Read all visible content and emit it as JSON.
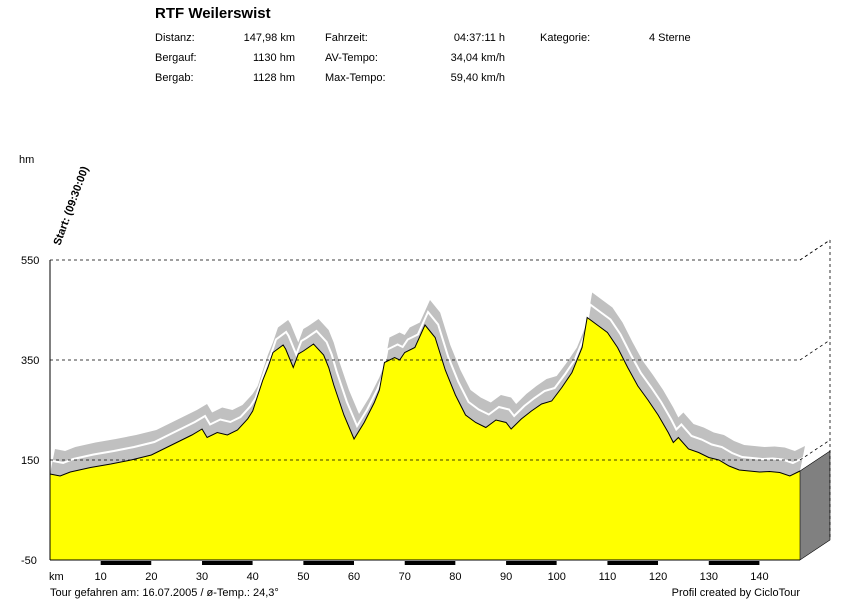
{
  "header": {
    "title": "RTF Weilerswist",
    "stats": [
      {
        "label": "Distanz:",
        "value": "147,98 km"
      },
      {
        "label": "Bergauf:",
        "value": "1130 hm"
      },
      {
        "label": "Bergab:",
        "value": "1128 hm"
      },
      {
        "label": "Fahrzeit:",
        "value": "04:37:11 h"
      },
      {
        "label": "AV-Tempo:",
        "value": "34,04 km/h"
      },
      {
        "label": "Max-Tempo:",
        "value": "59,40 km/h"
      },
      {
        "label": "Kategorie:",
        "value": "4 Sterne"
      }
    ]
  },
  "footer": {
    "left": "Tour gefahren am: 16.07.2005  /  ø-Temp.: 24,3°",
    "right": "Profil created by CicloTour"
  },
  "chart_data": {
    "type": "area",
    "ylabel": "hm",
    "xlabel": "km",
    "xlim": [
      0,
      148
    ],
    "ylim": [
      -50,
      550
    ],
    "yticks": [
      -50,
      150,
      350,
      550
    ],
    "xticks": [
      10,
      20,
      30,
      40,
      50,
      60,
      70,
      80,
      90,
      100,
      110,
      120,
      130,
      140
    ],
    "grid": "horizontal dashed at 150, 350, 550",
    "start_annotation": "Start: (09:30:00)",
    "series": [
      {
        "fill": "#ffff00",
        "x": [
          0,
          2,
          4,
          8,
          12,
          16,
          20,
          24,
          28,
          30,
          31,
          33,
          35,
          37,
          39,
          40,
          42,
          43,
          44,
          46,
          46.5,
          48,
          49,
          50,
          52,
          54,
          55,
          56,
          58,
          60,
          62,
          64,
          65,
          66,
          68,
          69,
          70,
          72,
          74,
          76,
          78,
          80,
          82,
          84,
          86,
          88,
          90,
          91,
          93,
          95,
          97,
          99,
          101,
          103,
          105,
          106,
          108,
          110,
          112,
          114,
          116,
          118,
          120,
          122,
          123,
          124,
          126,
          128,
          130,
          132,
          134,
          136,
          138,
          140,
          142,
          144,
          146,
          148
        ],
        "values": [
          122,
          118,
          126,
          135,
          142,
          150,
          160,
          180,
          200,
          212,
          195,
          205,
          200,
          210,
          232,
          248,
          310,
          335,
          365,
          380,
          372,
          335,
          362,
          368,
          382,
          360,
          335,
          300,
          240,
          192,
          225,
          265,
          290,
          345,
          355,
          350,
          365,
          375,
          420,
          395,
          330,
          280,
          240,
          225,
          215,
          230,
          225,
          212,
          232,
          248,
          262,
          268,
          295,
          325,
          375,
          435,
          420,
          405,
          375,
          335,
          298,
          270,
          240,
          205,
          185,
          195,
          172,
          165,
          155,
          150,
          138,
          130,
          128,
          126,
          127,
          125,
          118,
          128
        ]
      }
    ]
  }
}
